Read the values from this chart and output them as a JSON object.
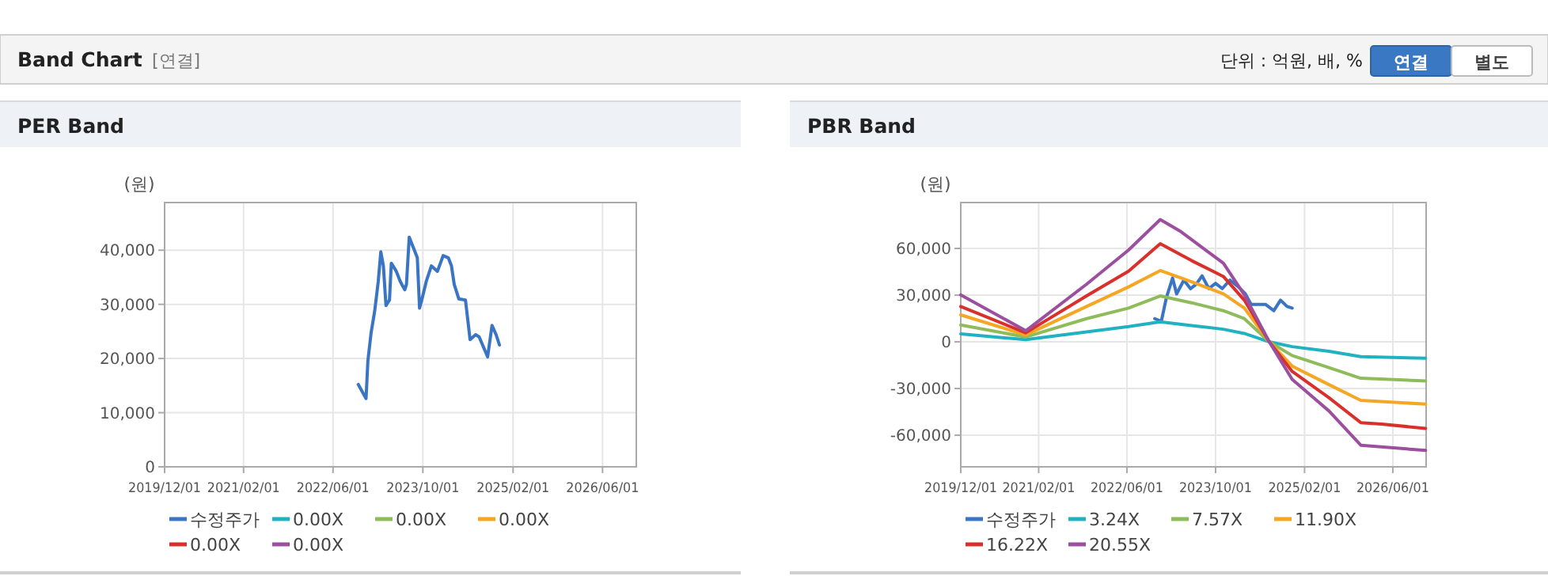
{
  "chart_data": [
    {
      "type": "other",
      "title": "Band Chart",
      "subtitle": "[연결]",
      "annotations": [
        "단위 : 억원, 배, %",
        "연결",
        "별도"
      ]
    },
    {
      "type": "line",
      "title": "PER Band",
      "ylabel": "(원)",
      "xlim": [
        "2019-12-01",
        "2026-12-01"
      ],
      "xticks": [
        {
          "value": "2019-12-01",
          "label": "2019/12/01"
        },
        {
          "value": "2021-02-01",
          "label": "2021/02/01"
        },
        {
          "value": "2022-06-01",
          "label": "2022/06/01"
        },
        {
          "value": "2023-10-01",
          "label": "2023/10/01"
        },
        {
          "value": "2025-02-01",
          "label": "2025/02/01"
        },
        {
          "value": "2026-06-01",
          "label": "2026/06/01"
        }
      ],
      "ylim": [
        0,
        48800
      ],
      "yticks": [
        {
          "value": 0,
          "label": "0"
        },
        {
          "value": 10000,
          "label": "10,000"
        },
        {
          "value": 20000,
          "label": "20,000"
        },
        {
          "value": 30000,
          "label": "30,000"
        },
        {
          "value": 40000,
          "label": "40,000"
        }
      ],
      "grid": true,
      "legend": "bottom",
      "marker": "none",
      "line_style": "solid",
      "series": [
        {
          "name": "수정주가",
          "color": "#3a75c4",
          "x": [
            "2022-10-16",
            "2022-11-27",
            "2022-12-07",
            "2022-12-25",
            "2023-01-13",
            "2023-02-01",
            "2023-02-15",
            "2023-03-01",
            "2023-03-15",
            "2023-04-03",
            "2023-04-13",
            "2023-05-10",
            "2023-06-01",
            "2023-06-25",
            "2023-07-04",
            "2023-07-19",
            "2023-08-16",
            "2023-09-01",
            "2023-09-13",
            "2023-09-25",
            "2023-10-19",
            "2023-11-16",
            "2023-12-19",
            "2024-01-19",
            "2024-02-16",
            "2024-03-04",
            "2024-03-19",
            "2024-04-13",
            "2024-05-19",
            "2024-06-13",
            "2024-07-13",
            "2024-08-01",
            "2024-09-16",
            "2024-10-10",
            "2024-11-01",
            "2024-11-19"
          ],
          "values": [
            15200,
            12600,
            19600,
            24900,
            28800,
            34200,
            39700,
            37100,
            29800,
            30800,
            37600,
            36100,
            34200,
            32700,
            33700,
            42400,
            40000,
            38600,
            29300,
            30800,
            34200,
            37100,
            36100,
            39000,
            38600,
            37100,
            33700,
            31000,
            30800,
            23500,
            24400,
            24000,
            20300,
            26100,
            24400,
            22500
          ]
        },
        {
          "name": "0.00X",
          "color": "#20b2c0"
        },
        {
          "name": "0.00X",
          "color": "#8fbc5a"
        },
        {
          "name": "0.00X",
          "color": "#f5a623"
        },
        {
          "name": "0.00X",
          "color": "#d9302c"
        },
        {
          "name": "0.00X",
          "color": "#9b4f9e"
        }
      ]
    },
    {
      "type": "line",
      "title": "PBR Band",
      "ylabel": "(원)",
      "xlim": [
        "2019-12-01",
        "2026-12-01"
      ],
      "xticks": [
        {
          "value": "2019-12-01",
          "label": "2019/12/01"
        },
        {
          "value": "2021-02-01",
          "label": "2021/02/01"
        },
        {
          "value": "2022-06-01",
          "label": "2022/06/01"
        },
        {
          "value": "2023-10-01",
          "label": "2023/10/01"
        },
        {
          "value": "2025-02-01",
          "label": "2025/02/01"
        },
        {
          "value": "2026-06-01",
          "label": "2026/06/01"
        }
      ],
      "ylim": [
        -80300,
        89500
      ],
      "yticks": [
        {
          "value": -60000,
          "label": "-60,000"
        },
        {
          "value": -30000,
          "label": "-30,000"
        },
        {
          "value": 0,
          "label": "0"
        },
        {
          "value": 30000,
          "label": "30,000"
        },
        {
          "value": 60000,
          "label": "60,000"
        }
      ],
      "grid": true,
      "legend": "bottom",
      "marker": "none",
      "line_style": "solid",
      "series": [
        {
          "name": "수정주가",
          "color": "#3a75c4",
          "x": [
            "2022-11-01",
            "2022-12-07",
            "2023-01-04",
            "2023-02-07",
            "2023-03-01",
            "2023-04-10",
            "2023-05-16",
            "2023-06-16",
            "2023-07-19",
            "2023-08-25",
            "2023-10-01",
            "2023-11-07",
            "2023-12-19",
            "2024-02-04",
            "2024-03-13",
            "2024-04-13",
            "2024-07-01",
            "2024-08-16",
            "2024-09-22",
            "2024-10-28",
            "2024-11-25"
          ],
          "values": [
            14900,
            13200,
            28500,
            41000,
            30800,
            39700,
            34200,
            36900,
            42400,
            34200,
            37600,
            34200,
            39700,
            35300,
            30800,
            24100,
            24100,
            20000,
            26800,
            22700,
            21700
          ]
        },
        {
          "name": "3.24X",
          "color": "#20b2c0",
          "x": [
            "2019-12-01",
            "2020-11-22",
            "2021-10-22",
            "2022-06-10",
            "2022-12-01",
            "2023-05-22",
            "2023-11-13",
            "2024-03-07",
            "2024-07-22",
            "2024-11-25",
            "2025-06-15",
            "2025-12-07",
            "2026-11-28"
          ],
          "values": [
            5100,
            1400,
            6400,
            9800,
            12900,
            10500,
            8100,
            5400,
            0,
            -3100,
            -6100,
            -9500,
            -10500
          ]
        },
        {
          "name": "7.57X",
          "color": "#8fbc5a",
          "x": [
            "2019-12-01",
            "2020-11-22",
            "2021-10-22",
            "2022-06-10",
            "2022-12-01",
            "2023-05-22",
            "2023-11-13",
            "2024-03-07",
            "2024-07-22",
            "2024-11-25",
            "2025-06-15",
            "2025-12-07",
            "2026-11-28"
          ],
          "values": [
            10800,
            3100,
            14900,
            21700,
            29500,
            25100,
            20000,
            14900,
            0,
            -8800,
            -16600,
            -23400,
            -25100
          ]
        },
        {
          "name": "11.90X",
          "color": "#f5a623",
          "x": [
            "2019-12-01",
            "2020-11-22",
            "2021-10-22",
            "2022-06-10",
            "2022-12-01",
            "2023-05-22",
            "2023-11-13",
            "2024-03-07",
            "2024-07-22",
            "2024-11-25",
            "2025-06-15",
            "2025-12-07",
            "2026-11-28"
          ],
          "values": [
            17300,
            4400,
            22700,
            35300,
            45800,
            38600,
            30800,
            21700,
            0,
            -15600,
            -27500,
            -37600,
            -40000
          ]
        },
        {
          "name": "16.22X",
          "color": "#d9302c",
          "x": [
            "2019-12-01",
            "2020-11-22",
            "2021-10-22",
            "2022-06-10",
            "2022-12-01",
            "2023-05-22",
            "2023-11-13",
            "2024-03-07",
            "2024-07-22",
            "2024-11-25",
            "2025-06-15",
            "2025-12-07",
            "2026-04-01",
            "2026-11-28"
          ],
          "values": [
            22700,
            5800,
            29500,
            45400,
            63100,
            52200,
            42000,
            26800,
            0,
            -19000,
            -35900,
            -51900,
            -52900,
            -55600
          ]
        },
        {
          "name": "20.55X",
          "color": "#9b4f9e",
          "x": [
            "2019-12-01",
            "2020-11-22",
            "2021-10-22",
            "2022-06-10",
            "2022-12-01",
            "2023-03-25",
            "2023-11-13",
            "2024-03-07",
            "2024-07-22",
            "2024-11-25",
            "2025-06-15",
            "2025-12-07",
            "2026-11-28"
          ],
          "values": [
            30200,
            7100,
            37000,
            59000,
            78600,
            70800,
            50500,
            30200,
            0,
            -24100,
            -44400,
            -66400,
            -69800
          ]
        }
      ]
    }
  ]
}
